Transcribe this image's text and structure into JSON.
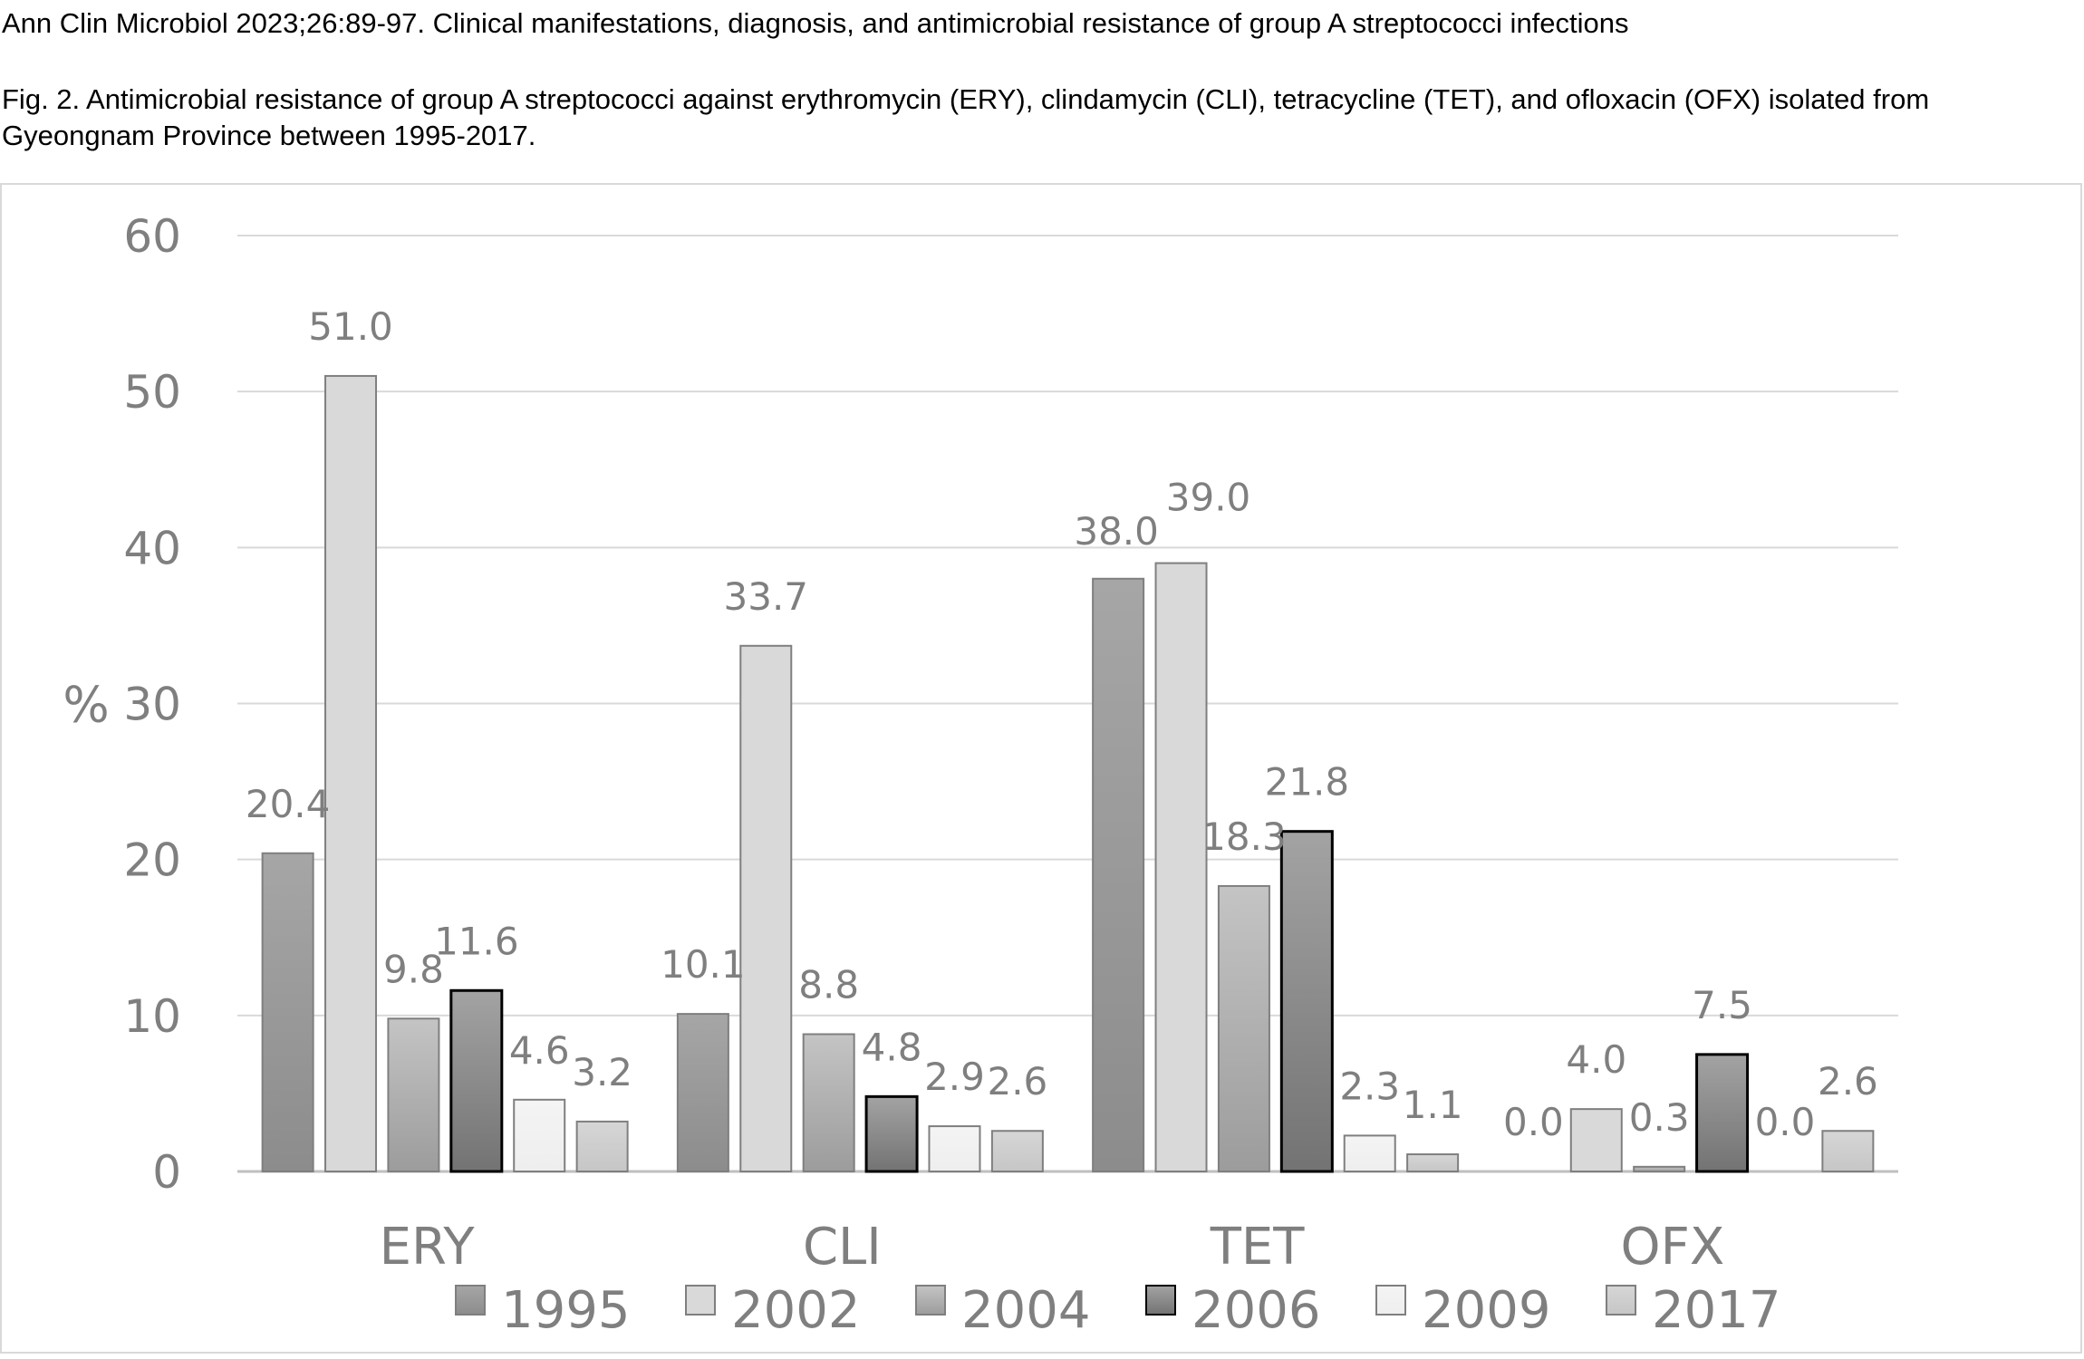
{
  "citation": "Ann Clin Microbiol 2023;26:89-97. Clinical manifestations, diagnosis, and antimicrobial resistance of group A streptococci infections",
  "caption": "Fig. 2. Antimicrobial resistance of group A streptococci against erythromycin (ERY), clindamycin (CLI), tetracycline (TET), and ofloxacin (OFX) isolated from Gyeongnam Province between 1995-2017.",
  "chart_data": {
    "type": "bar",
    "title": "",
    "ylabel": "%",
    "xlabel": "",
    "ylim": [
      0,
      60
    ],
    "yticks": [
      0,
      10,
      20,
      30,
      40,
      50,
      60
    ],
    "grid": true,
    "legend_position": "bottom",
    "categories": [
      "ERY",
      "CLI",
      "TET",
      "OFX"
    ],
    "series": [
      {
        "name": "1995",
        "values": [
          20.4,
          10.1,
          38.0,
          0.0
        ],
        "labels": [
          "20.4",
          "10.1",
          "38.0",
          "0.0"
        ],
        "color_top": "#a6a6a6",
        "color_bottom": "#8c8c8c"
      },
      {
        "name": "2002",
        "values": [
          51.0,
          33.7,
          39.0,
          4.0
        ],
        "labels": [
          "51.0",
          "33.7",
          "39.0",
          "4.0"
        ],
        "color_top": "#d9d9d9",
        "color_bottom": "#d9d9d9"
      },
      {
        "name": "2004",
        "values": [
          9.8,
          8.8,
          18.3,
          0.3
        ],
        "labels": [
          "9.8",
          "8.8",
          "18.3",
          "0.3"
        ],
        "color_top": "#c4c4c4",
        "color_bottom": "#9c9c9c"
      },
      {
        "name": "2006",
        "values": [
          11.6,
          4.8,
          21.8,
          7.5
        ],
        "labels": [
          "11.6",
          "4.8",
          "21.8",
          "7.5"
        ],
        "color_top": "#a3a3a3",
        "color_bottom": "#737373"
      },
      {
        "name": "2009",
        "values": [
          4.6,
          2.9,
          2.3,
          0.0
        ],
        "labels": [
          "4.6",
          "2.9",
          "2.3",
          "0.0"
        ],
        "color_top": "#f4f4f4",
        "color_bottom": "#eeeeee"
      },
      {
        "name": "2017",
        "values": [
          3.2,
          2.6,
          1.1,
          2.6
        ],
        "labels": [
          "3.2",
          "2.6",
          "1.1",
          "2.6"
        ],
        "color_top": "#d6d6d6",
        "color_bottom": "#c6c6c6"
      }
    ]
  }
}
